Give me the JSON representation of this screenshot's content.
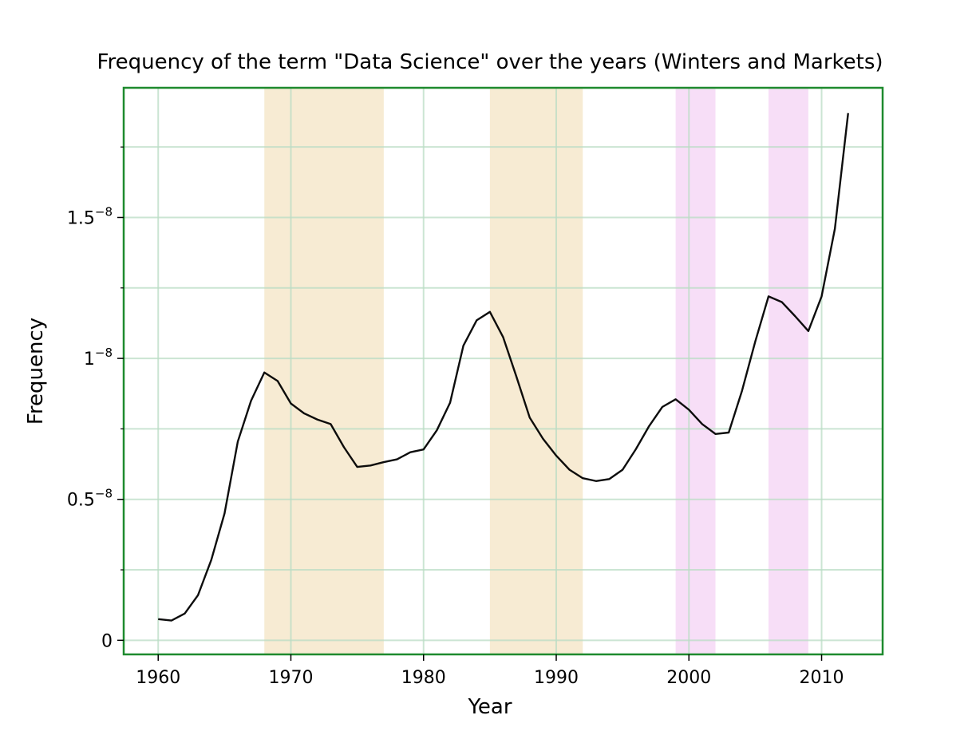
{
  "chart_data": {
    "type": "line",
    "title": "Frequency of the term \"Data Science\" over the years (Winters and Markets)",
    "xlabel": "Year",
    "ylabel": "Frequency",
    "xlim": [
      1957.4,
      1964.6
    ],
    "xlim_note": "",
    "x_range": [
      1957.4,
      2014.6
    ],
    "y_range": [
      -5e-10,
      1.96e-08
    ],
    "x_ticks": [
      {
        "value": 1960,
        "label": "1960"
      },
      {
        "value": 1970,
        "label": "1970"
      },
      {
        "value": 1980,
        "label": "1980"
      },
      {
        "value": 1990,
        "label": "1990"
      },
      {
        "value": 2000,
        "label": "2000"
      },
      {
        "value": 2010,
        "label": "2010"
      }
    ],
    "y_ticks": [
      {
        "value": 0,
        "base": "0",
        "exp": ""
      },
      {
        "value": 5e-09,
        "base": "0.5",
        "exp": "−8"
      },
      {
        "value": 1e-08,
        "base": "1",
        "exp": "−8"
      },
      {
        "value": 1.5e-08,
        "base": "1.5",
        "exp": "−8"
      }
    ],
    "y_minor_ticks": [
      2.5e-09,
      7.5e-09,
      1.25e-08,
      1.75e-08
    ],
    "grid": true,
    "colors": {
      "line": "#000000",
      "frame": "#1e8a2e",
      "grid": "#b9dcc4",
      "winter": "#f5e6c8",
      "market": "#f5d6f5"
    },
    "shaded_periods": [
      {
        "kind": "winter",
        "start": 1968,
        "end": 1977
      },
      {
        "kind": "winter",
        "start": 1985,
        "end": 1992
      },
      {
        "kind": "market",
        "start": 1999,
        "end": 2002
      },
      {
        "kind": "market",
        "start": 2006,
        "end": 2009
      }
    ],
    "series": [
      {
        "x": [
          1960,
          1961,
          1962,
          1963,
          1964,
          1965,
          1966,
          1967,
          1968,
          1969,
          1970,
          1971,
          1972,
          1973,
          1974,
          1975,
          1976,
          1977,
          1978,
          1979,
          1980,
          1981,
          1982,
          1983,
          1984,
          1985,
          1986,
          1987,
          1988,
          1989,
          1990,
          1991,
          1992,
          1993,
          1994,
          1995,
          1996,
          1997,
          1998,
          1999,
          2000,
          2001,
          2002,
          2003,
          2004,
          2005,
          2006,
          2007,
          2008,
          2009,
          2010,
          2011,
          2012
        ],
        "values": [
          7.5e-10,
          7e-10,
          9.5e-10,
          1.6e-09,
          2.85e-09,
          4.5e-09,
          7.05e-09,
          8.5e-09,
          9.5e-09,
          9.2e-09,
          8.4e-09,
          8.05e-09,
          7.83e-09,
          7.67e-09,
          6.85e-09,
          6.15e-09,
          6.2e-09,
          6.32e-09,
          6.42e-09,
          6.67e-09,
          6.77e-09,
          7.45e-09,
          8.43e-09,
          1.045e-08,
          1.135e-08,
          1.165e-08,
          1.075e-08,
          9.35e-09,
          7.9e-09,
          7.15e-09,
          6.55e-09,
          6.05e-09,
          5.75e-09,
          5.65e-09,
          5.72e-09,
          6.05e-09,
          6.78e-09,
          7.6e-09,
          8.28e-09,
          8.55e-09,
          8.18e-09,
          7.67e-09,
          7.32e-09,
          7.37e-09,
          8.85e-09,
          1.06e-08,
          1.22e-08,
          1.2e-08,
          1.15e-08,
          1.097e-08,
          1.22e-08,
          1.46e-08,
          1.87e-08
        ]
      }
    ]
  }
}
